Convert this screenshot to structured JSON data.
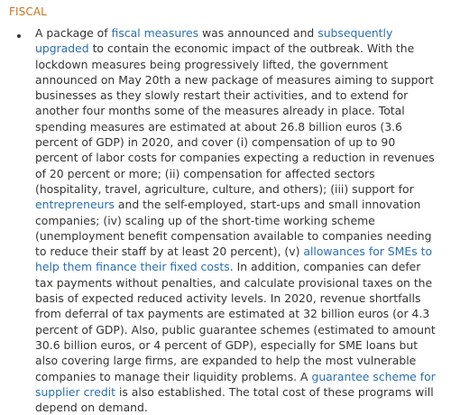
{
  "section": {
    "title": "FISCAL"
  },
  "paragraph": {
    "t1": "A package of ",
    "link_fiscal_measures": "fiscal measures",
    "t2": " was announced and ",
    "link_subsequently_upgraded": "subsequently upgraded",
    "t3": " to contain the economic impact of the outbreak. With the lockdown measures being progressively lifted, the government announced on May 20th a new package of measures aiming to support businesses as they slowly restart their activities, and to extend for another four months some of the measures already in place. Total spending measures are estimated at about 26.8 billion euros (3.6 percent of GDP) in 2020, and cover (i) compensation of up to 90 percent of labor costs for companies expecting a reduction in revenues of 20 percent or more; (ii) compensation for affected sectors (hospitality, travel, agriculture, culture, and others); (iii) support for ",
    "link_entrepreneurs": "entrepreneurs",
    "t4": " and the self-employed, start-ups and small innovation companies; (iv) scaling up of the short-time working scheme (unemployment benefit compensation available to companies needing to reduce their staff by at least 20 percent), (v) ",
    "link_allowances_smes": "allowances for SMEs to help them finance their fixed costs",
    "t5": ". In addition, companies can defer tax payments without penalties, and calculate provisional taxes on the basis of expected reduced activity levels. In 2020, revenue shortfalls from deferral of tax payments are estimated at 32 billion euros (or 4.3 percent of GDP). Also, public guarantee schemes (estimated to amount 30.6 billion euros, or 4 percent of GDP), especially for SME loans but also covering large firms, are expanded to help the most vulnerable companies to manage their liquidity problems. A ",
    "link_guarantee_scheme": "guarantee scheme for supplier credit",
    "t6": " is also established. The total cost of these programs will depend on demand."
  },
  "colors": {
    "heading": "#c8731e",
    "body_text": "#333333",
    "link": "#2a6fb0"
  }
}
